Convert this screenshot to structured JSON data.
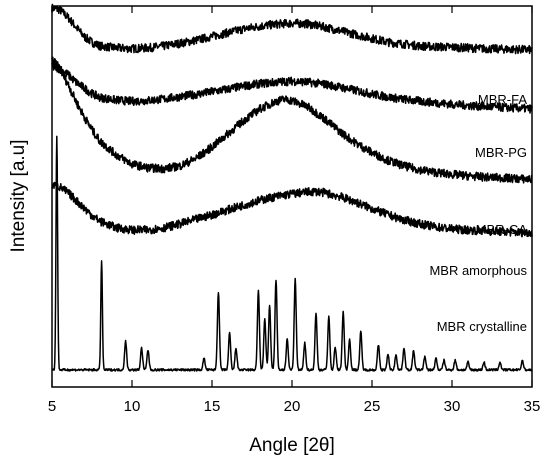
{
  "chart_data": {
    "type": "line",
    "title": "",
    "xlabel": "Angle [2θ]",
    "ylabel": "Intensity [a.u]",
    "xlim": [
      5,
      35
    ],
    "x_ticks": [
      "5",
      "10",
      "15",
      "20",
      "25",
      "30",
      "35"
    ],
    "y_ticks_labeled": false,
    "grid": false,
    "legend": "none (labels placed beside each trace)",
    "line_color": "#000000",
    "series": [
      {
        "name": "MBR-FA",
        "type": "amorphous halo",
        "baseline": 0.885,
        "points": [
          [
            5.0,
            0.995
          ],
          [
            5.5,
            0.99
          ],
          [
            6.0,
            0.97
          ],
          [
            6.5,
            0.945
          ],
          [
            7.0,
            0.92
          ],
          [
            7.5,
            0.905
          ],
          [
            8.0,
            0.895
          ],
          [
            9.0,
            0.89
          ],
          [
            10.0,
            0.888
          ],
          [
            11.0,
            0.89
          ],
          [
            12.0,
            0.895
          ],
          [
            13.0,
            0.902
          ],
          [
            14.0,
            0.91
          ],
          [
            15.0,
            0.92
          ],
          [
            16.0,
            0.93
          ],
          [
            17.0,
            0.94
          ],
          [
            18.0,
            0.947
          ],
          [
            19.0,
            0.952
          ],
          [
            20.0,
            0.955
          ],
          [
            21.0,
            0.953
          ],
          [
            22.0,
            0.945
          ],
          [
            23.0,
            0.935
          ],
          [
            24.0,
            0.925
          ],
          [
            25.0,
            0.915
          ],
          [
            26.0,
            0.905
          ],
          [
            27.0,
            0.9
          ],
          [
            28.0,
            0.895
          ],
          [
            29.0,
            0.893
          ],
          [
            30.0,
            0.892
          ],
          [
            31.0,
            0.89
          ],
          [
            32.0,
            0.888
          ],
          [
            33.0,
            0.887
          ],
          [
            34.0,
            0.886
          ],
          [
            35.0,
            0.885
          ]
        ]
      },
      {
        "name": "MBR-PG",
        "type": "amorphous halo",
        "baseline": 0.73,
        "points": [
          [
            5.0,
            0.84
          ],
          [
            5.5,
            0.835
          ],
          [
            6.0,
            0.82
          ],
          [
            6.5,
            0.8
          ],
          [
            7.0,
            0.785
          ],
          [
            7.5,
            0.77
          ],
          [
            8.0,
            0.76
          ],
          [
            9.0,
            0.753
          ],
          [
            10.0,
            0.75
          ],
          [
            11.0,
            0.752
          ],
          [
            12.0,
            0.756
          ],
          [
            13.0,
            0.762
          ],
          [
            14.0,
            0.768
          ],
          [
            15.0,
            0.775
          ],
          [
            16.0,
            0.782
          ],
          [
            17.0,
            0.79
          ],
          [
            18.0,
            0.796
          ],
          [
            19.0,
            0.8
          ],
          [
            20.0,
            0.803
          ],
          [
            21.0,
            0.8
          ],
          [
            22.0,
            0.795
          ],
          [
            23.0,
            0.787
          ],
          [
            24.0,
            0.778
          ],
          [
            25.0,
            0.769
          ],
          [
            26.0,
            0.761
          ],
          [
            27.0,
            0.755
          ],
          [
            28.0,
            0.75
          ],
          [
            29.0,
            0.746
          ],
          [
            30.0,
            0.742
          ],
          [
            31.0,
            0.739
          ],
          [
            32.0,
            0.736
          ],
          [
            33.0,
            0.734
          ],
          [
            34.0,
            0.732
          ],
          [
            35.0,
            0.73
          ]
        ]
      },
      {
        "name": "MBR-CA",
        "type": "amorphous halo",
        "baseline": 0.545,
        "points": [
          [
            5.0,
            0.86
          ],
          [
            5.5,
            0.835
          ],
          [
            6.0,
            0.795
          ],
          [
            6.5,
            0.75
          ],
          [
            7.0,
            0.71
          ],
          [
            7.5,
            0.675
          ],
          [
            8.0,
            0.645
          ],
          [
            9.0,
            0.61
          ],
          [
            10.0,
            0.585
          ],
          [
            11.0,
            0.575
          ],
          [
            12.0,
            0.573
          ],
          [
            13.0,
            0.58
          ],
          [
            14.0,
            0.6
          ],
          [
            15.0,
            0.63
          ],
          [
            16.0,
            0.665
          ],
          [
            17.0,
            0.7
          ],
          [
            18.0,
            0.73
          ],
          [
            19.0,
            0.75
          ],
          [
            19.5,
            0.755
          ],
          [
            20.0,
            0.752
          ],
          [
            21.0,
            0.735
          ],
          [
            22.0,
            0.705
          ],
          [
            23.0,
            0.67
          ],
          [
            24.0,
            0.64
          ],
          [
            25.0,
            0.615
          ],
          [
            26.0,
            0.595
          ],
          [
            27.0,
            0.58
          ],
          [
            28.0,
            0.57
          ],
          [
            29.0,
            0.563
          ],
          [
            30.0,
            0.558
          ],
          [
            31.0,
            0.554
          ],
          [
            32.0,
            0.551
          ],
          [
            33.0,
            0.549
          ],
          [
            34.0,
            0.547
          ],
          [
            35.0,
            0.545
          ]
        ]
      },
      {
        "name": "MBR amorphous",
        "type": "amorphous halo",
        "baseline": 0.405,
        "points": [
          [
            5.0,
            0.53
          ],
          [
            5.5,
            0.525
          ],
          [
            6.0,
            0.51
          ],
          [
            6.5,
            0.49
          ],
          [
            7.0,
            0.47
          ],
          [
            7.5,
            0.45
          ],
          [
            8.0,
            0.435
          ],
          [
            9.0,
            0.418
          ],
          [
            10.0,
            0.412
          ],
          [
            11.0,
            0.412
          ],
          [
            12.0,
            0.418
          ],
          [
            13.0,
            0.428
          ],
          [
            14.0,
            0.44
          ],
          [
            15.0,
            0.452
          ],
          [
            16.0,
            0.465
          ],
          [
            17.0,
            0.478
          ],
          [
            18.0,
            0.49
          ],
          [
            19.0,
            0.5
          ],
          [
            20.0,
            0.507
          ],
          [
            21.0,
            0.512
          ],
          [
            21.5,
            0.513
          ],
          [
            22.0,
            0.51
          ],
          [
            23.0,
            0.5
          ],
          [
            24.0,
            0.485
          ],
          [
            25.0,
            0.468
          ],
          [
            26.0,
            0.452
          ],
          [
            27.0,
            0.438
          ],
          [
            28.0,
            0.428
          ],
          [
            29.0,
            0.42
          ],
          [
            30.0,
            0.415
          ],
          [
            31.0,
            0.412
          ],
          [
            32.0,
            0.41
          ],
          [
            33.0,
            0.408
          ],
          [
            34.0,
            0.406
          ],
          [
            35.0,
            0.405
          ]
        ]
      },
      {
        "name": "MBR crystalline",
        "type": "crystalline peaks",
        "baseline": 0.045,
        "peaks": [
          {
            "x": 5.3,
            "height": 0.615
          },
          {
            "x": 8.1,
            "height": 0.287
          },
          {
            "x": 9.6,
            "height": 0.075
          },
          {
            "x": 10.6,
            "height": 0.057
          },
          {
            "x": 11.0,
            "height": 0.052
          },
          {
            "x": 14.5,
            "height": 0.03
          },
          {
            "x": 15.4,
            "height": 0.205
          },
          {
            "x": 16.1,
            "height": 0.096
          },
          {
            "x": 16.5,
            "height": 0.057
          },
          {
            "x": 17.9,
            "height": 0.206
          },
          {
            "x": 18.3,
            "height": 0.132
          },
          {
            "x": 18.6,
            "height": 0.168
          },
          {
            "x": 19.0,
            "height": 0.235
          },
          {
            "x": 19.7,
            "height": 0.08
          },
          {
            "x": 20.2,
            "height": 0.237
          },
          {
            "x": 20.8,
            "height": 0.07
          },
          {
            "x": 21.5,
            "height": 0.148
          },
          {
            "x": 22.3,
            "height": 0.14
          },
          {
            "x": 22.7,
            "height": 0.06
          },
          {
            "x": 23.2,
            "height": 0.152
          },
          {
            "x": 23.6,
            "height": 0.08
          },
          {
            "x": 24.3,
            "height": 0.1
          },
          {
            "x": 25.4,
            "height": 0.065
          },
          {
            "x": 26.0,
            "height": 0.04
          },
          {
            "x": 26.5,
            "height": 0.04
          },
          {
            "x": 27.0,
            "height": 0.058
          },
          {
            "x": 27.6,
            "height": 0.05
          },
          {
            "x": 28.3,
            "height": 0.035
          },
          {
            "x": 29.0,
            "height": 0.03
          },
          {
            "x": 29.5,
            "height": 0.025
          },
          {
            "x": 30.2,
            "height": 0.025
          },
          {
            "x": 31.0,
            "height": 0.02
          },
          {
            "x": 32.0,
            "height": 0.02
          },
          {
            "x": 33.0,
            "height": 0.02
          },
          {
            "x": 34.4,
            "height": 0.025
          }
        ]
      }
    ]
  }
}
